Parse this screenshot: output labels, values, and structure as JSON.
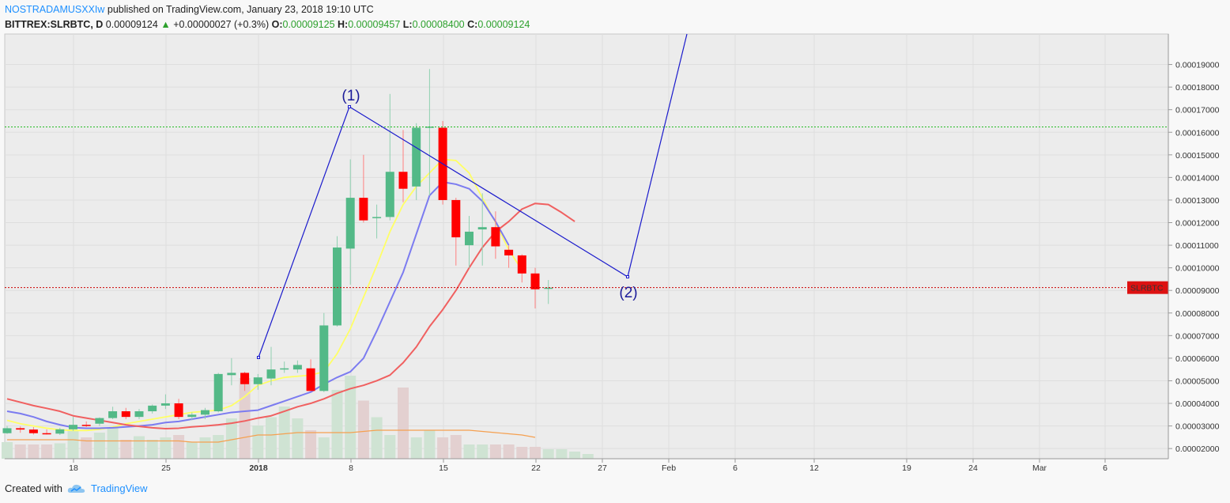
{
  "header": {
    "author": "NOSTRADAMUSXXIw",
    "published": " published on TradingView.com, January 23, 2018 19:10 UTC",
    "symbol": "BITTREX:SLRBTC, D",
    "price": "0.00009124",
    "change_arrow": "▲",
    "change": "+0.00000027 (+0.3%)",
    "o_label": "O:",
    "o_value": "0.00009125",
    "h_label": "H:",
    "h_value": "0.00009457",
    "l_label": "L:",
    "l_value": "0.00008400",
    "c_label": "C:",
    "c_value": "0.00009124"
  },
  "footer": {
    "created_with": "Created with",
    "brand": "TradingView"
  },
  "colors": {
    "up": "#53b987",
    "down": "#ff0000",
    "ema_yellow": "#ffff66",
    "ma_blue": "#7b7bf0",
    "ma_red": "#f06060",
    "vol_ma": "#f5a050",
    "drawing": "#1a1acc",
    "resistance": "#22bb22",
    "price_line": "#cc0000"
  },
  "chart_data": {
    "type": "candlestick",
    "x_tick_labels": [
      "18",
      "25",
      "2018",
      "8",
      "15",
      "22",
      "27",
      "Feb",
      "6",
      "12",
      "19",
      "24",
      "Mar",
      "6"
    ],
    "y_tick_labels": [
      "0.00002000",
      "0.00003000",
      "0.00004000",
      "0.00005000",
      "0.00006000",
      "0.00007000",
      "0.00008000",
      "0.00009000",
      "0.00010000",
      "0.00011000",
      "0.00012000",
      "0.00013000",
      "0.00014000",
      "0.00015000",
      "0.00016000",
      "0.00017000",
      "0.00018000",
      "0.00019000"
    ],
    "ylim": [
      1.55e-05,
      0.0002035
    ],
    "price_label": {
      "symbol": "SLRBTC",
      "value": "0.00009124",
      "level": 9.124e-05
    },
    "resistance_label": {
      "value": "0.00016235",
      "level": 0.00016235
    },
    "wave_labels": [
      "(1)",
      "(2)"
    ],
    "candles": [
      {
        "x": 0,
        "o": 2.68e-05,
        "h": 3e-05,
        "l": 2.65e-05,
        "c": 2.9e-05
      },
      {
        "x": 1,
        "o": 2.9e-05,
        "h": 2.98e-05,
        "l": 2.7e-05,
        "c": 2.84e-05
      },
      {
        "x": 2,
        "o": 2.84e-05,
        "h": 2.95e-05,
        "l": 2.62e-05,
        "c": 2.68e-05
      },
      {
        "x": 3,
        "o": 2.68e-05,
        "h": 2.85e-05,
        "l": 2.62e-05,
        "c": 2.66e-05
      },
      {
        "x": 4,
        "o": 2.66e-05,
        "h": 2.92e-05,
        "l": 2.6e-05,
        "c": 2.85e-05
      },
      {
        "x": 5,
        "o": 2.85e-05,
        "h": 3.4e-05,
        "l": 2.78e-05,
        "c": 3.05e-05
      },
      {
        "x": 6,
        "o": 3.05e-05,
        "h": 3.2e-05,
        "l": 2.95e-05,
        "c": 3e-05
      },
      {
        "x": 7,
        "o": 3.1e-05,
        "h": 3.38e-05,
        "l": 3e-05,
        "c": 3.35e-05
      },
      {
        "x": 8,
        "o": 3.35e-05,
        "h": 3.85e-05,
        "l": 3.3e-05,
        "c": 3.65e-05
      },
      {
        "x": 9,
        "o": 3.65e-05,
        "h": 3.8e-05,
        "l": 3.3e-05,
        "c": 3.4e-05
      },
      {
        "x": 10,
        "o": 3.4e-05,
        "h": 3.75e-05,
        "l": 3.3e-05,
        "c": 3.65e-05
      },
      {
        "x": 11,
        "o": 3.65e-05,
        "h": 3.95e-05,
        "l": 3.55e-05,
        "c": 3.9e-05
      },
      {
        "x": 12,
        "o": 3.9e-05,
        "h": 4.4e-05,
        "l": 3.75e-05,
        "c": 4e-05
      },
      {
        "x": 13,
        "o": 4e-05,
        "h": 4.2e-05,
        "l": 3.3e-05,
        "c": 3.4e-05
      },
      {
        "x": 14,
        "o": 3.4e-05,
        "h": 3.6e-05,
        "l": 3.25e-05,
        "c": 3.5e-05
      },
      {
        "x": 15,
        "o": 3.5e-05,
        "h": 3.8e-05,
        "l": 3.3e-05,
        "c": 3.7e-05
      },
      {
        "x": 16,
        "o": 3.65e-05,
        "h": 5.35e-05,
        "l": 3.6e-05,
        "c": 5.3e-05
      },
      {
        "x": 17,
        "o": 5.25e-05,
        "h": 6e-05,
        "l": 4.8e-05,
        "c": 5.35e-05
      },
      {
        "x": 18,
        "o": 5.35e-05,
        "h": 5.4e-05,
        "l": 4.55e-05,
        "c": 4.85e-05
      },
      {
        "x": 19,
        "o": 4.85e-05,
        "h": 5.3e-05,
        "l": 4.6e-05,
        "c": 5.15e-05
      },
      {
        "x": 20,
        "o": 5.1e-05,
        "h": 6.5e-05,
        "l": 4.8e-05,
        "c": 5.5e-05
      },
      {
        "x": 21,
        "o": 5.5e-05,
        "h": 5.85e-05,
        "l": 5.35e-05,
        "c": 5.55e-05
      },
      {
        "x": 22,
        "o": 5.5e-05,
        "h": 5.9e-05,
        "l": 5.35e-05,
        "c": 5.7e-05
      },
      {
        "x": 23,
        "o": 5.55e-05,
        "h": 5.95e-05,
        "l": 4.55e-05,
        "c": 4.55e-05
      },
      {
        "x": 24,
        "o": 4.55e-05,
        "h": 8e-05,
        "l": 4.5e-05,
        "c": 7.45e-05
      },
      {
        "x": 25,
        "o": 7.45e-05,
        "h": 0.000114,
        "l": 7.4e-05,
        "c": 0.000109
      },
      {
        "x": 26,
        "o": 0.0001085,
        "h": 0.000148,
        "l": 9.25e-05,
        "c": 0.000131
      },
      {
        "x": 27,
        "o": 0.000131,
        "h": 0.00015,
        "l": 0.00012,
        "c": 0.000121
      },
      {
        "x": 28,
        "o": 0.000122,
        "h": 0.000128,
        "l": 0.000113,
        "c": 0.0001225
      },
      {
        "x": 29,
        "o": 0.0001225,
        "h": 0.000177,
        "l": 0.000121,
        "c": 0.0001425
      },
      {
        "x": 30,
        "o": 0.0001425,
        "h": 0.000161,
        "l": 0.000129,
        "c": 0.000135
      },
      {
        "x": 31,
        "o": 0.000136,
        "h": 0.000164,
        "l": 0.00013,
        "c": 0.000162
      },
      {
        "x": 32,
        "o": 0.000162,
        "h": 0.000188,
        "l": 0.000132,
        "c": 0.0001625
      },
      {
        "x": 33,
        "o": 0.000162,
        "h": 0.000165,
        "l": 0.000128,
        "c": 0.00013
      },
      {
        "x": 34,
        "o": 0.00013,
        "h": 0.000131,
        "l": 0.000101,
        "c": 0.0001135
      },
      {
        "x": 35,
        "o": 0.00011,
        "h": 0.000123,
        "l": 0.0001,
        "c": 0.000116
      },
      {
        "x": 36,
        "o": 0.000117,
        "h": 0.000133,
        "l": 0.000101,
        "c": 0.000118
      },
      {
        "x": 37,
        "o": 0.000118,
        "h": 0.000125,
        "l": 0.000104,
        "c": 0.0001095
      },
      {
        "x": 38,
        "o": 0.000108,
        "h": 0.00011,
        "l": 0.0001,
        "c": 0.0001055
      },
      {
        "x": 39,
        "o": 0.0001055,
        "h": 0.000106,
        "l": 9.35e-05,
        "c": 9.75e-05
      },
      {
        "x": 40,
        "o": 9.75e-05,
        "h": 0.0001,
        "l": 8.2e-05,
        "c": 9.05e-05
      },
      {
        "x": 41,
        "o": 9.12e-05,
        "h": 9.46e-05,
        "l": 8.4e-05,
        "c": 9.12e-05
      }
    ],
    "volume": [
      0.14,
      0.12,
      0.12,
      0.12,
      0.13,
      0.24,
      0.18,
      0.22,
      0.26,
      0.16,
      0.19,
      0.16,
      0.18,
      0.2,
      0.14,
      0.18,
      0.2,
      0.34,
      0.68,
      0.28,
      0.35,
      0.44,
      0.34,
      0.24,
      0.18,
      0.58,
      0.7,
      0.49,
      0.35,
      0.2,
      0.6,
      0.18,
      0.24,
      0.18,
      0.2,
      0.12,
      0.12,
      0.12,
      0.12,
      0.1,
      0.1,
      0.08,
      0.08,
      0.06,
      0.04
    ],
    "volume_ma": [
      0.16,
      0.16,
      0.16,
      0.16,
      0.16,
      0.16,
      0.15,
      0.15,
      0.15,
      0.15,
      0.15,
      0.15,
      0.15,
      0.15,
      0.14,
      0.14,
      0.14,
      0.16,
      0.18,
      0.2,
      0.2,
      0.21,
      0.22,
      0.22,
      0.22,
      0.22,
      0.22,
      0.23,
      0.24,
      0.24,
      0.24,
      0.24,
      0.24,
      0.24,
      0.24,
      0.24,
      0.23,
      0.22,
      0.21,
      0.2,
      0.18
    ],
    "ma_yellow": [
      3.25e-05,
      3.1e-05,
      3e-05,
      2.9e-05,
      2.83e-05,
      2.8e-05,
      2.8e-05,
      2.85e-05,
      2.95e-05,
      3.1e-05,
      3.2e-05,
      3.3e-05,
      3.4e-05,
      3.5e-05,
      3.6e-05,
      3.65e-05,
      3.7e-05,
      3.9e-05,
      4.3e-05,
      4.8e-05,
      5e-05,
      5.15e-05,
      5.2e-05,
      5.25e-05,
      5.4e-05,
      6.2e-05,
      7.3e-05,
      8.7e-05,
      0.000101,
      0.000116,
      0.000128,
      0.000136,
      0.000142,
      0.000148,
      0.0001475,
      0.000142,
      0.000131,
      0.00012,
      0.000108,
      9.9e-05
    ],
    "ma_blue": [
      3.65e-05,
      3.55e-05,
      3.4e-05,
      3.2e-05,
      3.05e-05,
      2.93e-05,
      2.9e-05,
      2.9e-05,
      2.92e-05,
      2.96e-05,
      3e-05,
      3.05e-05,
      3.15e-05,
      3.2e-05,
      3.3e-05,
      3.4e-05,
      3.5e-05,
      3.6e-05,
      3.65e-05,
      3.7e-05,
      3.9e-05,
      4.1e-05,
      4.3e-05,
      4.5e-05,
      4.85e-05,
      5.15e-05,
      5.4e-05,
      6e-05,
      7.2e-05,
      8.5e-05,
      9.8e-05,
      0.000115,
      0.000132,
      0.000138,
      0.000137,
      0.000135,
      0.0001295,
      0.0001205,
      0.00011
    ],
    "ma_red": [
      4.2e-05,
      4.05e-05,
      3.9e-05,
      3.78e-05,
      3.65e-05,
      3.45e-05,
      3.35e-05,
      3.25e-05,
      3.15e-05,
      3.05e-05,
      2.98e-05,
      2.92e-05,
      2.88e-05,
      2.9e-05,
      2.96e-05,
      3e-05,
      3.05e-05,
      3.12e-05,
      3.22e-05,
      3.35e-05,
      3.45e-05,
      3.65e-05,
      3.85e-05,
      4e-05,
      4.2e-05,
      4.45e-05,
      4.65e-05,
      4.8e-05,
      5e-05,
      5.25e-05,
      5.8e-05,
      6.5e-05,
      7.4e-05,
      8.15e-05,
      9e-05,
      0.0001,
      0.000109,
      0.000116,
      0.0001205,
      0.000126,
      0.0001285,
      0.000128,
      0.0001245,
      0.0001205
    ]
  }
}
